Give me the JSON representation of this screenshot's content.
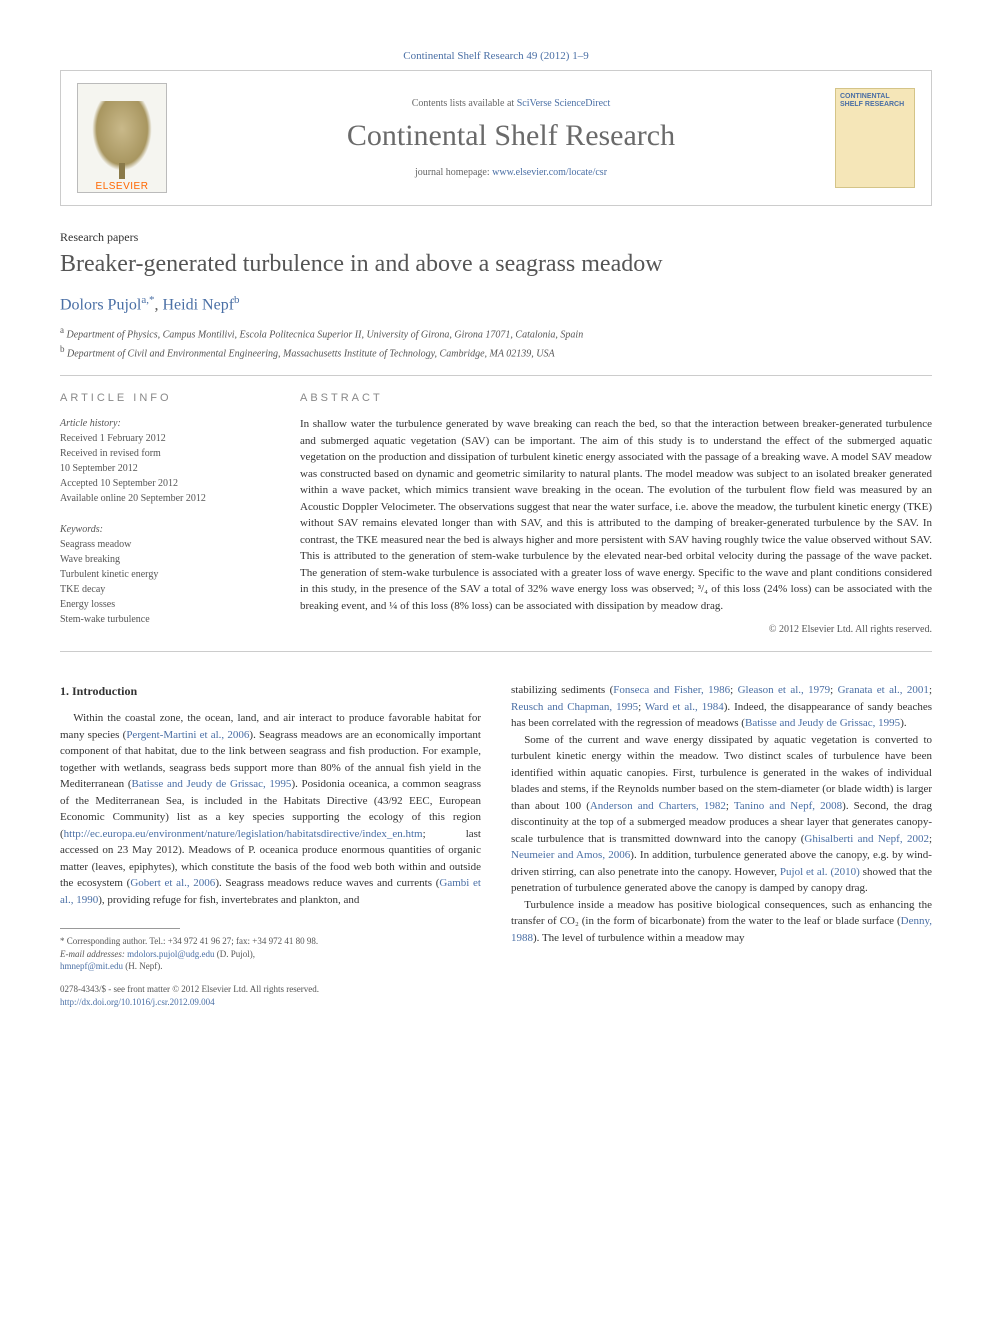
{
  "journal_ref": "Continental Shelf Research 49 (2012) 1–9",
  "banner": {
    "contents_prefix": "Contents lists available at ",
    "contents_link": "SciVerse ScienceDirect",
    "journal_title": "Continental Shelf Research",
    "homepage_prefix": "journal homepage: ",
    "homepage_link": "www.elsevier.com/locate/csr",
    "publisher_label": "ELSEVIER",
    "cover_title": "CONTINENTAL SHELF RESEARCH"
  },
  "article": {
    "type": "Research papers",
    "title": "Breaker-generated turbulence in and above a seagrass meadow",
    "authors_html_parts": {
      "a1_name": "Dolors Pujol",
      "a1_sup": "a,",
      "a1_corr": "*",
      "sep": ", ",
      "a2_name": "Heidi Nepf",
      "a2_sup": "b"
    },
    "affiliations": [
      {
        "sup": "a",
        "text": " Department of Physics, Campus Montilivi, Escola Politecnica Superior II, University of Girona, Girona 17071, Catalonia, Spain"
      },
      {
        "sup": "b",
        "text": " Department of Civil and Environmental Engineering, Massachusetts Institute of Technology, Cambridge, MA 02139, USA"
      }
    ]
  },
  "article_info": {
    "label": "article info",
    "history_label": "Article history:",
    "history": [
      "Received 1 February 2012",
      "Received in revised form",
      "10 September 2012",
      "Accepted 10 September 2012",
      "Available online 20 September 2012"
    ],
    "keywords_label": "Keywords:",
    "keywords": [
      "Seagrass meadow",
      "Wave breaking",
      "Turbulent kinetic energy",
      "TKE decay",
      "Energy losses",
      "Stem-wake turbulence"
    ]
  },
  "abstract": {
    "label": "abstract",
    "text": "In shallow water the turbulence generated by wave breaking can reach the bed, so that the interaction between breaker-generated turbulence and submerged aquatic vegetation (SAV) can be important. The aim of this study is to understand the effect of the submerged aquatic vegetation on the production and dissipation of turbulent kinetic energy associated with the passage of a breaking wave. A model SAV meadow was constructed based on dynamic and geometric similarity to natural plants. The model meadow was subject to an isolated breaker generated within a wave packet, which mimics transient wave breaking in the ocean. The evolution of the turbulent flow field was measured by an Acoustic Doppler Velocimeter. The observations suggest that near the water surface, i.e. above the meadow, the turbulent kinetic energy (TKE) without SAV remains elevated longer than with SAV, and this is attributed to the damping of breaker-generated turbulence by the SAV. In contrast, the TKE measured near the bed is always higher and more persistent with SAV having roughly twice the value observed without SAV. This is attributed to the generation of stem-wake turbulence by the elevated near-bed orbital velocity during the passage of the wave packet. The generation of stem-wake turbulence is associated with a greater loss of wave energy. Specific to the wave and plant conditions considered in this study, in the presence of the SAV a total of 32% wave energy loss was observed; ³/₄ of this loss (24% loss) can be associated with the breaking event, and ¼ of this loss (8% loss) can be associated with dissipation by meadow drag.",
    "copyright": "© 2012 Elsevier Ltd. All rights reserved."
  },
  "body": {
    "section_number": "1.",
    "section_title": "Introduction",
    "col1_parts": {
      "p1_a": "Within the coastal zone, the ocean, land, and air interact to produce favorable habitat for many species (",
      "p1_ref1": "Pergent-Martini et al., 2006",
      "p1_b": "). Seagrass meadows are an economically important component of that habitat, due to the link between seagrass and fish production. For example, together with wetlands, seagrass beds support more than 80% of the annual fish yield in the Mediterranean (",
      "p1_ref2": "Batisse and Jeudy de Grissac, 1995",
      "p1_c": "). Posidonia oceanica, a common seagrass of the Mediterranean Sea, is included in the Habitats Directive (43/92 EEC, European Economic Community) list as a key species supporting the ecology of this region (",
      "p1_link": "http://ec.europa.eu/environment/nature/legislation/habitatsdirective/index_en.htm",
      "p1_d": "; last accessed on 23 May 2012). Meadows of P. oceanica produce enormous quantities of organic matter (leaves, epiphytes), which constitute the basis of the food web both within and outside the ecosystem (",
      "p1_ref3": "Gobert et al., 2006",
      "p1_e": "). Seagrass meadows reduce waves and currents (",
      "p1_ref4": "Gambi et al., 1990",
      "p1_f": "), providing refuge for fish, invertebrates and plankton, and"
    },
    "col2_parts": {
      "p1_a": "stabilizing sediments (",
      "p1_ref1": "Fonseca and Fisher, 1986",
      "p1_sep1": "; ",
      "p1_ref2": "Gleason et al., 1979",
      "p1_sep2": "; ",
      "p1_ref3": "Granata et al., 2001",
      "p1_sep3": "; ",
      "p1_ref4": "Reusch and Chapman, 1995",
      "p1_sep4": "; ",
      "p1_ref5": "Ward et al., 1984",
      "p1_b": "). Indeed, the disappearance of sandy beaches has been correlated with the regression of meadows (",
      "p1_ref6": "Batisse and Jeudy de Grissac, 1995",
      "p1_c": ").",
      "p2_a": "Some of the current and wave energy dissipated by aquatic vegetation is converted to turbulent kinetic energy within the meadow. Two distinct scales of turbulence have been identified within aquatic canopies. First, turbulence is generated in the wakes of individual blades and stems, if the Reynolds number based on the stem-diameter (or blade width) is larger than about 100 (",
      "p2_ref1": "Anderson and Charters, 1982",
      "p2_sep1": "; ",
      "p2_ref2": "Tanino and Nepf, 2008",
      "p2_b": "). Second, the drag discontinuity at the top of a submerged meadow produces a shear layer that generates canopy-scale turbulence that is transmitted downward into the canopy (",
      "p2_ref3": "Ghisalberti and Nepf, 2002",
      "p2_sep2": "; ",
      "p2_ref4": "Neumeier and Amos, 2006",
      "p2_c": "). In addition, turbulence generated above the canopy, e.g. by wind-driven stirring, can also penetrate into the canopy. However, ",
      "p2_ref5": "Pujol et al. (2010)",
      "p2_d": " showed that the penetration of turbulence generated above the canopy is damped by canopy drag.",
      "p3_a": "Turbulence inside a meadow has positive biological consequences, such as enhancing the transfer of CO₂ (in the form of bicarbonate) from the water to the leaf or blade surface (",
      "p3_ref1": "Denny, 1988",
      "p3_b": "). The level of turbulence within a meadow may"
    }
  },
  "footnotes": {
    "corr_label": "* Corresponding author. Tel.: +34 972 41 96 27; fax: +34 972 41 80 98.",
    "email_label": "E-mail addresses:",
    "email1": " mdolors.pujol@udg.edu",
    "email1_name": " (D. Pujol),",
    "email2": "hmnepf@mit.edu",
    "email2_name": " (H. Nepf)."
  },
  "footer": {
    "line1": "0278-4343/$ - see front matter © 2012 Elsevier Ltd. All rights reserved.",
    "doi_link": "http://dx.doi.org/10.1016/j.csr.2012.09.004"
  },
  "colors": {
    "link": "#4a6fa5",
    "text": "#333333",
    "muted": "#555555",
    "border": "#cccccc",
    "publisher": "#ff6600"
  }
}
